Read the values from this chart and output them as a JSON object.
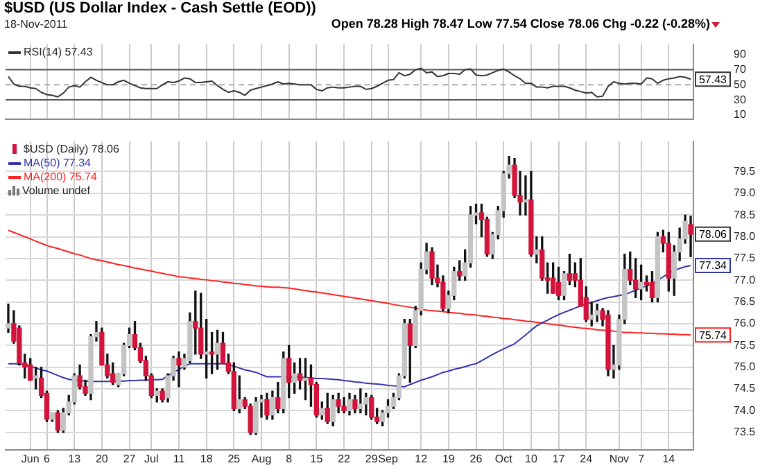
{
  "chart_data": [
    {
      "type": "line",
      "title": "$USD (US Dollar Index - Cash Settle (EOD))",
      "subtitle": "18-Nov-2011",
      "categories": [
        null,
        null,
        null,
        null,
        null,
        null,
        null,
        null,
        null,
        null,
        null,
        null,
        null,
        null,
        null,
        null,
        null,
        null,
        null,
        null,
        null,
        null,
        null,
        null,
        null,
        null,
        null,
        null,
        null,
        null,
        null,
        null,
        null,
        null,
        null,
        null,
        null,
        null,
        null,
        null,
        null,
        null,
        null,
        null,
        null,
        null,
        null,
        null,
        null,
        null,
        null,
        null,
        null,
        null,
        null,
        null,
        null,
        null,
        null,
        null,
        null,
        null,
        null,
        null,
        null,
        null,
        null,
        null,
        null,
        null,
        null,
        null,
        null,
        null,
        null,
        null,
        null,
        null,
        null,
        null,
        null,
        null,
        null,
        null,
        null,
        null,
        null,
        null,
        null,
        null,
        null,
        null,
        null,
        null,
        null,
        null,
        null,
        null,
        null,
        null,
        null,
        null,
        null,
        null,
        null,
        null,
        null,
        null,
        null,
        null,
        null,
        null,
        null,
        null,
        null,
        null,
        null,
        null,
        null,
        null,
        null,
        null,
        null,
        null,
        null
      ],
      "series": [
        {
          "name": "RSI(14) 57.43",
          "color": "#333333",
          "values": [
            61,
            51,
            48,
            48,
            46,
            45,
            40,
            37,
            36,
            34,
            39,
            47,
            49,
            47,
            54,
            60,
            56,
            53,
            50,
            50,
            54,
            56,
            52,
            49,
            46,
            45,
            45,
            45,
            50,
            54,
            53,
            55,
            59,
            58,
            53,
            53,
            54,
            55,
            49,
            44,
            40,
            42,
            40,
            36,
            43,
            45,
            47,
            49,
            51,
            54,
            51,
            52,
            51,
            50,
            50,
            50,
            44,
            42,
            46,
            47,
            46,
            46,
            47,
            48,
            48,
            44,
            45,
            48,
            52,
            56,
            57,
            66,
            62,
            64,
            70,
            72,
            66,
            67,
            61,
            62,
            65,
            65,
            64,
            70,
            71,
            63,
            62,
            63,
            66,
            69,
            71,
            67,
            62,
            58,
            52,
            52,
            47,
            47,
            46,
            48,
            48,
            48,
            46,
            43,
            41,
            39,
            40,
            34,
            35,
            48,
            54,
            52,
            51,
            52,
            52,
            51,
            59,
            58,
            52,
            56,
            58,
            59,
            61,
            60,
            57.43
          ],
          "value_labels": [
            null,
            null,
            null,
            null,
            null,
            null,
            null,
            null,
            null,
            null,
            null,
            null,
            null,
            null,
            null,
            null,
            null,
            null,
            null,
            null,
            null,
            null,
            null,
            null,
            null,
            null,
            null,
            null,
            null,
            null,
            null,
            null,
            null,
            null,
            null,
            null,
            null,
            null,
            null,
            null,
            null,
            null,
            null,
            null,
            null,
            null,
            null,
            null,
            null,
            null,
            null,
            null,
            null,
            null,
            null,
            null,
            null,
            null,
            null,
            null,
            null,
            null,
            null,
            null,
            null,
            null,
            null,
            null,
            null,
            null,
            null,
            null,
            null,
            null,
            null,
            null,
            null,
            null,
            null,
            null,
            null,
            null,
            null,
            null,
            null,
            null,
            null,
            null,
            null,
            null,
            null,
            null,
            null,
            null,
            null,
            null,
            null,
            null,
            null,
            null,
            null,
            null,
            null,
            null,
            null,
            null,
            null,
            null,
            null,
            null,
            null,
            null,
            null,
            null,
            null,
            null,
            null,
            null,
            null,
            null,
            null,
            null,
            null,
            null,
            "57.43"
          ]
        }
      ],
      "ylim": [
        4,
        104
      ],
      "yticks": [
        10,
        30,
        50,
        70,
        90
      ],
      "grid": "x",
      "tick_labels": "y",
      "legend": "top left",
      "marker": "none",
      "ref_lines": [
        {
          "axis": "y",
          "value": 70,
          "color": "#555555"
        },
        {
          "axis": "y",
          "value": 30,
          "color": "#555555"
        },
        {
          "axis": "y",
          "value": 50,
          "color": "#aaaaaa",
          "line_style": "dashed"
        }
      ],
      "annotations": [
        "Open 78.28 High 78.47 Low 77.54 Close 78.06 Chg -0.22 (-0.28%)"
      ]
    },
    {
      "type": "candlestick",
      "categories": [
        null,
        null,
        null,
        null,
        "Jun",
        null,
        null,
        "6",
        null,
        null,
        null,
        null,
        "13",
        null,
        null,
        null,
        null,
        "20",
        null,
        null,
        null,
        null,
        "27",
        null,
        null,
        null,
        "Jul",
        null,
        null,
        null,
        null,
        "11",
        null,
        null,
        null,
        null,
        "18",
        null,
        null,
        null,
        null,
        "25",
        null,
        null,
        null,
        null,
        "Aug",
        null,
        null,
        null,
        null,
        "8",
        null,
        null,
        null,
        null,
        "15",
        null,
        null,
        null,
        null,
        "22",
        null,
        null,
        null,
        null,
        "29",
        null,
        null,
        "Sep",
        null,
        null,
        null,
        null,
        null,
        "12",
        null,
        null,
        null,
        null,
        "19",
        null,
        null,
        null,
        null,
        "26",
        null,
        null,
        null,
        null,
        "Oct",
        null,
        null,
        null,
        null,
        "10",
        null,
        null,
        null,
        null,
        "17",
        null,
        null,
        null,
        null,
        "24",
        null,
        null,
        null,
        null,
        null,
        "Nov",
        null,
        null,
        null,
        "7",
        null,
        null,
        null,
        null,
        "14",
        null,
        null,
        null,
        null
      ],
      "series": [
        {
          "name": "$USD (Daily) 78.06",
          "colors": [
            "#c4c4c4",
            "#d2143c",
            "#d2143c",
            "#d2143c",
            "#d2143c",
            "#c4c4c4",
            "#d2143c",
            "#d2143c",
            "#c4c4c4",
            "#d2143c",
            "#c4c4c4",
            "#c4c4c4",
            "#c4c4c4",
            "#d2143c",
            "#d2143c",
            "#c4c4c4",
            "#c4c4c4",
            "#d2143c",
            "#d2143c",
            "#d2143c",
            "#c4c4c4",
            "#c4c4c4",
            "#c4c4c4",
            "#d2143c",
            "#d2143c",
            "#d2143c",
            "#d2143c",
            "#c4c4c4",
            "#d2143c",
            "#c4c4c4",
            "#c4c4c4",
            "#d2143c",
            "#c4c4c4",
            "#c4c4c4",
            "#d2143c",
            "#d2143c",
            "#c4c4c4",
            "#d2143c",
            "#c4c4c4",
            "#d2143c",
            "#d2143c",
            "#d2143c",
            "#c4c4c4",
            "#d2143c",
            "#d2143c",
            "#c4c4c4",
            "#c4c4c4",
            "#d2143c",
            "#c4c4c4",
            "#d2143c",
            "#c4c4c4",
            "#d2143c",
            "#c4c4c4",
            "#d2143c",
            "#c4c4c4",
            "#d2143c",
            "#d2143c",
            "#c4c4c4",
            "#d2143c",
            "#c4c4c4",
            "#d2143c",
            "#d2143c",
            "#c4c4c4",
            "#d2143c",
            "#c4c4c4",
            "#c4c4c4",
            "#d2143c",
            "#d2143c",
            "#c4c4c4",
            "#c4c4c4",
            "#c4c4c4",
            "#c4c4c4",
            "#c4c4c4",
            "#d2143c",
            "#c4c4c4",
            "#c4c4c4",
            "#c4c4c4",
            "#d2143c",
            "#d2143c",
            "#d2143c",
            "#c4c4c4",
            "#c4c4c4",
            "#d2143c",
            "#c4c4c4",
            "#c4c4c4",
            "#c4c4c4",
            "#d2143c",
            "#d2143c",
            "#c4c4c4",
            "#c4c4c4",
            "#c4c4c4",
            "#c4c4c4",
            "#d2143c",
            "#d2143c",
            "#c4c4c4",
            "#d2143c",
            "#c4c4c4",
            "#d2143c",
            "#d2143c",
            "#d2143c",
            "#d2143c",
            "#c4c4c4",
            "#d2143c",
            "#d2143c",
            "#d2143c",
            "#d2143c",
            "#c4c4c4",
            "#c4c4c4",
            "#d2143c",
            "#d2143c",
            "#c4c4c4",
            "#c4c4c4",
            "#c4c4c4",
            "#d2143c",
            "#d2143c",
            "#c4c4c4",
            "#d2143c",
            "#d2143c",
            "#c4c4c4",
            "#d2143c",
            "#d2143c",
            "#c4c4c4",
            "#c4c4c4",
            "#c4c4c4",
            "#d2143c"
          ],
          "ohlc": [
            [
              75.9,
              76.45,
              75.8,
              76
            ],
            [
              76,
              76.3,
              75.55,
              75.6
            ],
            [
              75.9,
              75.95,
              75.05,
              75.1
            ],
            [
              75.1,
              75.3,
              74.75,
              75
            ],
            [
              75.05,
              75.2,
              74.7,
              74.7
            ],
            [
              74.75,
              75,
              74.5,
              74.8
            ],
            [
              74.75,
              75,
              74.3,
              74.35
            ],
            [
              74.4,
              74.45,
              73.75,
              73.8
            ],
            [
              73.8,
              73.95,
              73.75,
              73.95
            ],
            [
              73.95,
              74,
              73.5,
              73.55
            ],
            [
              73.55,
              74.05,
              73.5,
              73.95
            ],
            [
              73.95,
              74.35,
              73.9,
              74.2
            ],
            [
              74.2,
              74.85,
              74.15,
              74.8
            ],
            [
              74.8,
              75.05,
              74.5,
              74.55
            ],
            [
              74.55,
              74.7,
              74.35,
              74.4
            ],
            [
              74.4,
              75.75,
              74.25,
              75.7
            ],
            [
              75.7,
              76.05,
              75.6,
              75.8
            ],
            [
              75.8,
              75.9,
              75.05,
              75.05
            ],
            [
              75.05,
              75.3,
              74.75,
              74.8
            ],
            [
              74.85,
              75.1,
              74.6,
              74.65
            ],
            [
              74.6,
              74.85,
              74.55,
              74.85
            ],
            [
              74.85,
              75.55,
              74.8,
              75.5
            ],
            [
              75.5,
              75.9,
              75.45,
              75.75
            ],
            [
              75.75,
              76.05,
              75.4,
              75.45
            ],
            [
              75.45,
              75.55,
              75.1,
              75.15
            ],
            [
              75.15,
              75.25,
              74.7,
              74.8
            ],
            [
              74.8,
              74.85,
              74.3,
              74.35
            ],
            [
              74.35,
              74.5,
              74.2,
              74.45
            ],
            [
              74.45,
              74.5,
              74.2,
              74.25
            ],
            [
              74.3,
              74.85,
              74.2,
              74.8
            ],
            [
              74.8,
              75.25,
              74.7,
              75.2
            ],
            [
              75.2,
              75.35,
              74.55,
              75.05
            ],
            [
              75,
              75.3,
              74.95,
              75.2
            ],
            [
              75.15,
              76.25,
              75.1,
              76.05
            ],
            [
              76.05,
              76.75,
              75.3,
              75.9
            ],
            [
              75.9,
              76.7,
              75.2,
              75.3
            ],
            [
              75.3,
              76.1,
              74.75,
              75.35
            ],
            [
              75.35,
              75.8,
              74.85,
              75.3
            ],
            [
              75.3,
              75.85,
              74.95,
              75.55
            ],
            [
              75.55,
              75.8,
              75.1,
              75.1
            ],
            [
              75.1,
              75.3,
              74.85,
              74.9
            ],
            [
              74.9,
              75.1,
              74,
              74.05
            ],
            [
              74.05,
              74.8,
              73.95,
              74.25
            ],
            [
              74.25,
              74.3,
              74.05,
              74.1
            ],
            [
              74.1,
              74.15,
              73.45,
              73.5
            ],
            [
              73.5,
              74.3,
              73.45,
              74.2
            ],
            [
              74.2,
              74.35,
              73.85,
              74.25
            ],
            [
              74.25,
              74.4,
              73.8,
              73.9
            ],
            [
              73.9,
              74.45,
              73.8,
              74.3
            ],
            [
              74.3,
              74.65,
              73.95,
              74.05
            ],
            [
              74.05,
              75.35,
              73.95,
              75.2
            ],
            [
              75.2,
              75.5,
              74.3,
              74.65
            ],
            [
              74.65,
              75.1,
              74.4,
              74.85
            ],
            [
              74.85,
              75.2,
              74.5,
              74.7
            ],
            [
              74.7,
              75.2,
              74.25,
              74.75
            ],
            [
              74.75,
              75.05,
              74.1,
              74.6
            ],
            [
              74.6,
              74.65,
              73.85,
              73.9
            ],
            [
              73.9,
              74.2,
              73.8,
              74.05
            ],
            [
              74.05,
              74.4,
              73.7,
              73.75
            ],
            [
              73.75,
              74.35,
              73.65,
              74.25
            ],
            [
              74.25,
              74.4,
              73.95,
              74.1
            ],
            [
              74.1,
              74.3,
              73.95,
              74
            ],
            [
              74,
              74.4,
              73.9,
              74.25
            ],
            [
              74.25,
              74.35,
              73.95,
              74.05
            ],
            [
              74.05,
              74.5,
              73.95,
              74.15
            ],
            [
              74.15,
              74.4,
              73.9,
              74.3
            ],
            [
              74.3,
              74.35,
              73.8,
              73.85
            ],
            [
              73.85,
              74.05,
              73.7,
              73.75
            ],
            [
              73.75,
              74,
              73.65,
              73.95
            ],
            [
              73.95,
              74.25,
              73.85,
              74.1
            ],
            [
              74.1,
              74.4,
              74.05,
              74.3
            ],
            [
              74.3,
              74.85,
              74.25,
              74.8
            ],
            [
              74.8,
              76.1,
              74.75,
              76
            ],
            [
              76,
              76.1,
              74.65,
              75.5
            ],
            [
              75.5,
              76.4,
              75.45,
              76.3
            ],
            [
              76.3,
              77.4,
              76.2,
              77.25
            ],
            [
              77.25,
              77.85,
              77.15,
              77.65
            ],
            [
              77.65,
              77.75,
              76.9,
              77.05
            ],
            [
              77.05,
              77.35,
              76.85,
              76.95
            ],
            [
              76.95,
              77.1,
              76.3,
              76.35
            ],
            [
              76.35,
              76.75,
              76.25,
              76.65
            ],
            [
              76.65,
              77.3,
              76.55,
              77.2
            ],
            [
              77.2,
              77.45,
              77,
              77.1
            ],
            [
              77.1,
              77.7,
              77,
              77.4
            ],
            [
              77.4,
              78.7,
              77.3,
              78.5
            ],
            [
              78.5,
              78.75,
              78.3,
              78.55
            ],
            [
              78.55,
              78.75,
              78,
              78.4
            ],
            [
              78.4,
              78.45,
              77.55,
              77.6
            ],
            [
              77.6,
              78.1,
              77.5,
              78.05
            ],
            [
              78.05,
              78.7,
              77.95,
              78.6
            ],
            [
              78.6,
              79.5,
              78.45,
              79.45
            ],
            [
              79.45,
              79.85,
              79.35,
              79.65
            ],
            [
              79.65,
              79.8,
              78.9,
              78.95
            ],
            [
              78.95,
              79.5,
              78.5,
              78.8
            ],
            [
              78.8,
              79.4,
              78.5,
              78.85
            ],
            [
              78.85,
              79.5,
              77.55,
              77.6
            ],
            [
              77.6,
              78,
              77.4,
              77.7
            ],
            [
              77.7,
              78,
              77,
              77.05
            ],
            [
              77.05,
              77.4,
              76.7,
              77
            ],
            [
              77.05,
              77.4,
              76.7,
              76.7
            ],
            [
              76.95,
              77.3,
              76.55,
              76.65
            ],
            [
              76.65,
              77.2,
              76.55,
              77.15
            ],
            [
              77.15,
              77.6,
              76.9,
              77
            ],
            [
              77.15,
              77.4,
              76.85,
              77
            ],
            [
              77,
              77.5,
              76.4,
              76.4
            ],
            [
              76.6,
              76.85,
              76.05,
              76.1
            ],
            [
              76.1,
              76.5,
              75.95,
              76.2
            ],
            [
              76.2,
              76.45,
              76.05,
              76.3
            ],
            [
              76.3,
              76.35,
              75.95,
              76.1
            ],
            [
              76.2,
              76.3,
              74.8,
              74.95
            ],
            [
              74.95,
              75.5,
              74.75,
              75.05
            ],
            [
              75.05,
              76.2,
              74.95,
              76.1
            ],
            [
              76.1,
              77.6,
              76,
              77.25
            ],
            [
              77.25,
              77.65,
              76.9,
              77
            ],
            [
              77,
              77.5,
              76.6,
              76.8
            ],
            [
              76.8,
              77.35,
              76.55,
              76.95
            ],
            [
              76.95,
              77.1,
              76.75,
              76.9
            ],
            [
              76.95,
              77.2,
              76.5,
              76.6
            ],
            [
              76.6,
              78.1,
              76.5,
              78
            ],
            [
              78,
              78.15,
              77.65,
              77.85
            ],
            [
              77.85,
              78.1,
              76.75,
              77.05
            ],
            [
              77.05,
              77.8,
              76.65,
              77.65
            ],
            [
              77.65,
              78.2,
              77.45,
              77.95
            ],
            [
              77.95,
              78.5,
              77.85,
              78.35
            ],
            [
              78.28,
              78.47,
              77.54,
              78.06
            ]
          ],
          "value_labels": [
            null,
            null,
            null,
            null,
            null,
            null,
            null,
            null,
            null,
            null,
            null,
            null,
            null,
            null,
            null,
            null,
            null,
            null,
            null,
            null,
            null,
            null,
            null,
            null,
            null,
            null,
            null,
            null,
            null,
            null,
            null,
            null,
            null,
            null,
            null,
            null,
            null,
            null,
            null,
            null,
            null,
            null,
            null,
            null,
            null,
            null,
            null,
            null,
            null,
            null,
            null,
            null,
            null,
            null,
            null,
            null,
            null,
            null,
            null,
            null,
            null,
            null,
            null,
            null,
            null,
            null,
            null,
            null,
            null,
            null,
            null,
            null,
            null,
            null,
            null,
            null,
            null,
            null,
            null,
            null,
            null,
            null,
            null,
            null,
            null,
            null,
            null,
            null,
            null,
            null,
            null,
            null,
            null,
            null,
            null,
            null,
            null,
            null,
            null,
            null,
            null,
            null,
            null,
            null,
            null,
            null,
            null,
            null,
            null,
            null,
            null,
            null,
            null,
            null,
            null,
            null,
            null,
            null,
            null,
            null,
            null,
            null,
            null,
            null,
            "78.06"
          ]
        },
        {
          "type": "line",
          "name": "MA(50) 77.34",
          "color": "#3333aa",
          "values": [
            75.08,
            75.08,
            75.07,
            75.06,
            75.02,
            74.98,
            74.94,
            74.91,
            74.86,
            74.81,
            74.76,
            74.72,
            74.7,
            74.69,
            74.68,
            74.67,
            74.67,
            74.67,
            74.67,
            74.68,
            74.68,
            74.68,
            74.69,
            74.69,
            74.7,
            74.7,
            74.71,
            74.71,
            74.72,
            74.8,
            74.88,
            74.95,
            75.02,
            75.08,
            75.08,
            75.08,
            75.08,
            75.08,
            75.08,
            75.08,
            75.06,
            75.02,
            74.98,
            74.94,
            74.91,
            74.88,
            74.83,
            74.78,
            74.78,
            74.78,
            74.78,
            74.78,
            74.77,
            74.77,
            74.76,
            74.75,
            74.74,
            74.74,
            74.73,
            74.72,
            74.71,
            74.69,
            74.68,
            74.66,
            74.65,
            74.63,
            74.62,
            74.61,
            74.6,
            74.58,
            74.57,
            74.56,
            74.55,
            74.6,
            74.65,
            74.7,
            74.74,
            74.78,
            74.83,
            74.88,
            74.91,
            74.95,
            74.98,
            75.01,
            75.05,
            75.08,
            75.15,
            75.22,
            75.29,
            75.36,
            75.42,
            75.48,
            75.54,
            75.64,
            75.74,
            75.85,
            75.95,
            76.02,
            76.08,
            76.15,
            76.21,
            76.26,
            76.31,
            76.36,
            76.41,
            76.45,
            76.49,
            76.53,
            76.57,
            76.6,
            76.62,
            76.65,
            76.67,
            76.72,
            76.77,
            76.82,
            76.87,
            76.92,
            77,
            77.08,
            77.15,
            77.23,
            77.27,
            77.31,
            77.34
          ],
          "value_labels": [
            null,
            null,
            null,
            null,
            null,
            null,
            null,
            null,
            null,
            null,
            null,
            null,
            null,
            null,
            null,
            null,
            null,
            null,
            null,
            null,
            null,
            null,
            null,
            null,
            null,
            null,
            null,
            null,
            null,
            null,
            null,
            null,
            null,
            null,
            null,
            null,
            null,
            null,
            null,
            null,
            null,
            null,
            null,
            null,
            null,
            null,
            null,
            null,
            null,
            null,
            null,
            null,
            null,
            null,
            null,
            null,
            null,
            null,
            null,
            null,
            null,
            null,
            null,
            null,
            null,
            null,
            null,
            null,
            null,
            null,
            null,
            null,
            null,
            null,
            null,
            null,
            null,
            null,
            null,
            null,
            null,
            null,
            null,
            null,
            null,
            null,
            null,
            null,
            null,
            null,
            null,
            null,
            null,
            null,
            null,
            null,
            null,
            null,
            null,
            null,
            null,
            null,
            null,
            null,
            null,
            null,
            null,
            null,
            null,
            null,
            null,
            null,
            null,
            null,
            null,
            null,
            null,
            null,
            null,
            null,
            null,
            null,
            null,
            null,
            "77.34"
          ]
        },
        {
          "type": "line",
          "name": "MA(200) 75.74",
          "color": "#ff2020",
          "values": [
            78.15,
            78.1,
            78.05,
            78,
            77.95,
            77.9,
            77.85,
            77.8,
            77.76,
            77.73,
            77.69,
            77.65,
            77.61,
            77.58,
            77.54,
            77.5,
            77.47,
            77.45,
            77.42,
            77.39,
            77.36,
            77.34,
            77.31,
            77.28,
            77.26,
            77.23,
            77.21,
            77.18,
            77.16,
            77.13,
            77.11,
            77.08,
            77.07,
            77.05,
            77.04,
            77.02,
            77.01,
            76.99,
            76.98,
            76.96,
            76.95,
            76.93,
            76.92,
            76.9,
            76.89,
            76.87,
            76.86,
            76.85,
            76.84,
            76.84,
            76.83,
            76.82,
            76.8,
            76.78,
            76.76,
            76.74,
            76.73,
            76.71,
            76.69,
            76.67,
            76.65,
            76.63,
            76.61,
            76.59,
            76.57,
            76.55,
            76.53,
            76.51,
            76.49,
            76.47,
            76.44,
            76.42,
            76.4,
            76.38,
            76.36,
            76.33,
            76.31,
            76.3,
            76.29,
            76.28,
            76.26,
            76.25,
            76.24,
            76.22,
            76.21,
            76.2,
            76.18,
            76.17,
            76.15,
            76.14,
            76.12,
            76.11,
            76.09,
            76.08,
            76.06,
            76.05,
            76.03,
            76.02,
            76,
            75.98,
            75.97,
            75.95,
            75.93,
            75.92,
            75.9,
            75.89,
            75.88,
            75.86,
            75.85,
            75.84,
            75.83,
            75.81,
            75.8,
            75.8,
            75.79,
            75.79,
            75.78,
            75.78,
            75.77,
            75.77,
            75.76,
            75.76,
            75.75,
            75.75,
            75.74
          ],
          "value_labels": [
            null,
            null,
            null,
            null,
            null,
            null,
            null,
            null,
            null,
            null,
            null,
            null,
            null,
            null,
            null,
            null,
            null,
            null,
            null,
            null,
            null,
            null,
            null,
            null,
            null,
            null,
            null,
            null,
            null,
            null,
            null,
            null,
            null,
            null,
            null,
            null,
            null,
            null,
            null,
            null,
            null,
            null,
            null,
            null,
            null,
            null,
            null,
            null,
            null,
            null,
            null,
            null,
            null,
            null,
            null,
            null,
            null,
            null,
            null,
            null,
            null,
            null,
            null,
            null,
            null,
            null,
            null,
            null,
            null,
            null,
            null,
            null,
            null,
            null,
            null,
            null,
            null,
            null,
            null,
            null,
            null,
            null,
            null,
            null,
            null,
            null,
            null,
            null,
            null,
            null,
            null,
            null,
            null,
            null,
            null,
            null,
            null,
            null,
            null,
            null,
            null,
            null,
            null,
            null,
            null,
            null,
            null,
            null,
            null,
            null,
            null,
            null,
            null,
            null,
            null,
            null,
            null,
            null,
            null,
            null,
            null,
            null,
            null,
            null,
            "75.74"
          ]
        }
      ],
      "ylim": [
        73.1,
        80.2
      ],
      "yticks": [
        {
          "value": 73.5,
          "label": "73.5"
        },
        {
          "value": 74,
          "label": "74.0"
        },
        {
          "value": 74.5,
          "label": "74.5"
        },
        {
          "value": 75,
          "label": "75.0"
        },
        {
          "value": 75.5,
          "label": "75.5"
        },
        {
          "value": 76,
          "label": "76.0"
        },
        {
          "value": 76.5,
          "label": "76.5"
        },
        {
          "value": 77,
          "label": "77.0"
        },
        {
          "value": 77.5,
          "label": "77.5"
        },
        {
          "value": 78,
          "label": "78.0"
        },
        {
          "value": 78.5,
          "label": "78.5"
        },
        {
          "value": 79,
          "label": "79.0"
        },
        {
          "value": 79.5,
          "label": "79.5"
        }
      ],
      "grid": true,
      "legend": "top left",
      "marker": "none",
      "annotations": [
        "Volume undef"
      ]
    }
  ]
}
